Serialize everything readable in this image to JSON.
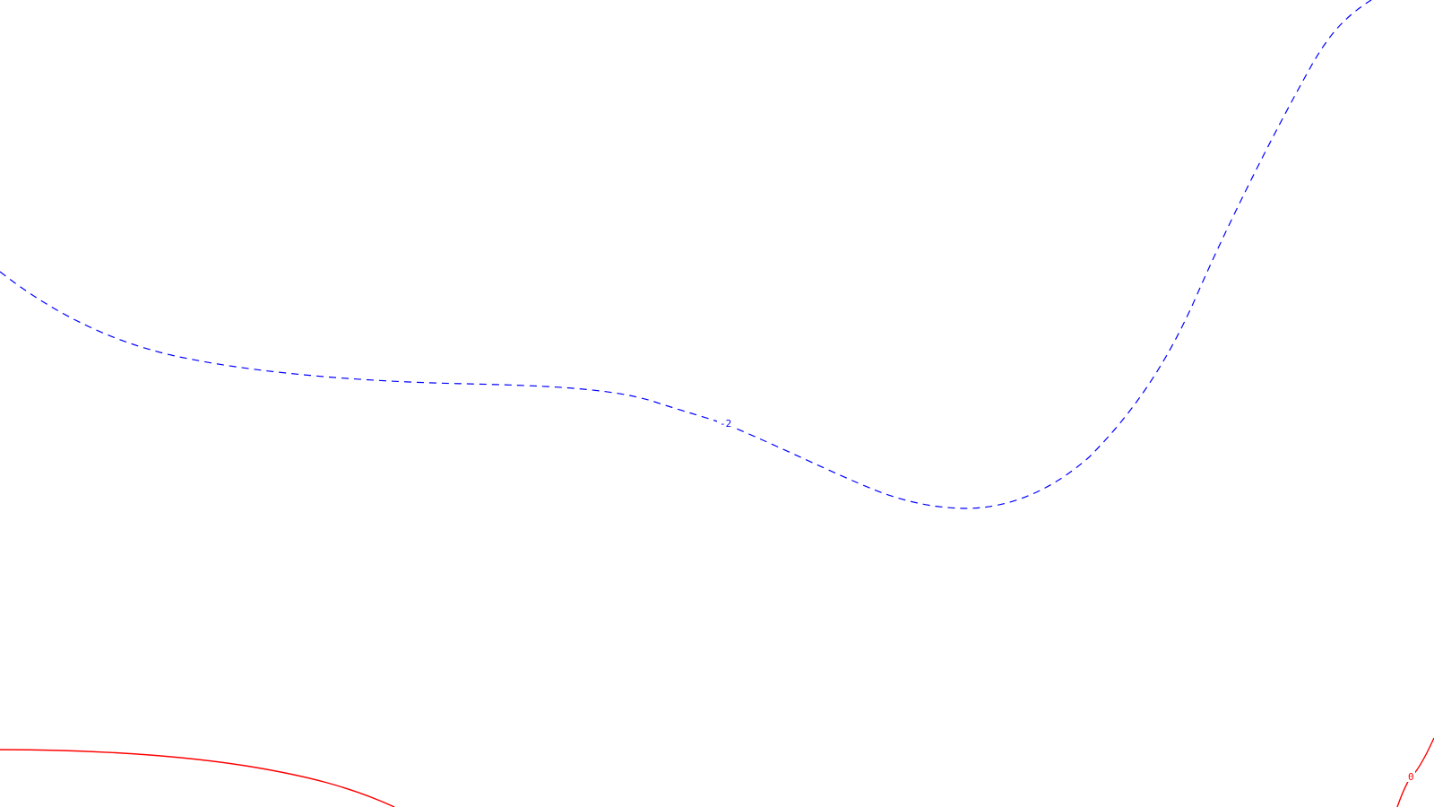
{
  "contours": [
    {
      "id": "contour-minus-2",
      "label": "-2",
      "color": "#0000ff",
      "style": "dashed"
    },
    {
      "id": "contour-0-left",
      "label": "",
      "color": "#ff0000",
      "style": "solid"
    },
    {
      "id": "contour-0-right",
      "label": "0",
      "color": "#ff0000",
      "style": "solid"
    }
  ]
}
